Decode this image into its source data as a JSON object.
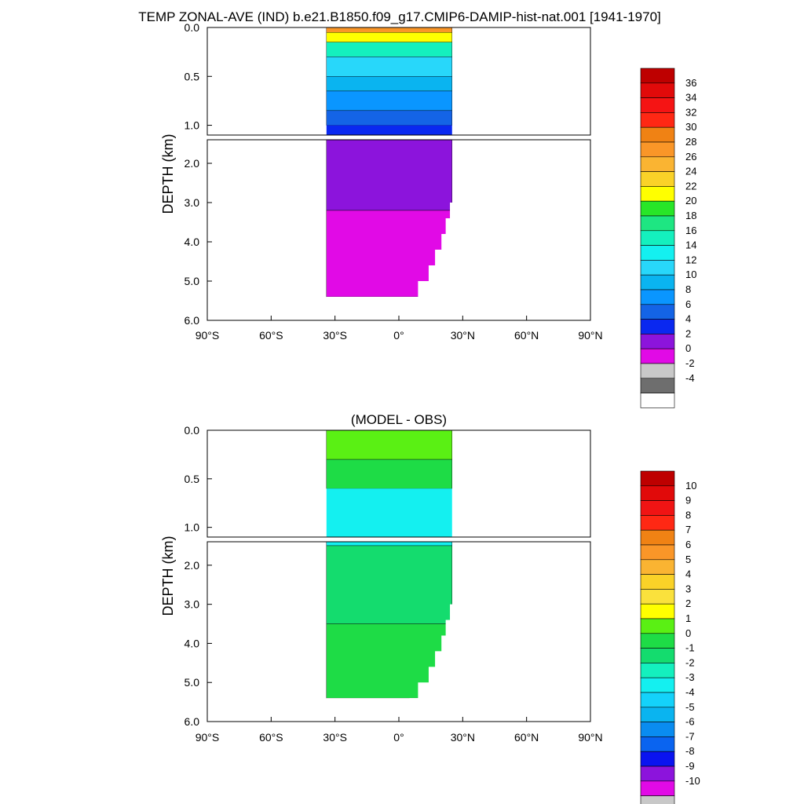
{
  "figure": {
    "title": "TEMP ZONAL-AVE (IND) b.e21.B1850.f09_g17.CMIP6-DAMIP-hist-nat.001 [1941-1970]"
  },
  "colors": {
    "temp_scale": [
      "#ffffff",
      "#6e6e6e",
      "#c8c8c8",
      "#e10ae6",
      "#8c14dc",
      "#0a28f0",
      "#1464e6",
      "#0a96ff",
      "#0ab4f0",
      "#28d7fa",
      "#14f0f0",
      "#14f0be",
      "#1ee682",
      "#28e628",
      "#ffff00",
      "#fad228",
      "#fab432",
      "#fa9628",
      "#f08214",
      "#ff2814",
      "#f51414",
      "#e10a0a",
      "#be0000"
    ],
    "diff_scale": [
      "#ffffff",
      "#6e6e6e",
      "#c8c8c8",
      "#e10ae6",
      "#8c14dc",
      "#0a14f0",
      "#0a64f0",
      "#0a8cf0",
      "#0ab4f0",
      "#14d2fa",
      "#14f0f0",
      "#14f0be",
      "#14dc6e",
      "#1edc46",
      "#5af014",
      "#ffff00",
      "#fae13c",
      "#fad228",
      "#fab432",
      "#fa9628",
      "#f08214",
      "#ff2814",
      "#f01414",
      "#e10a0a",
      "#be0000"
    ]
  },
  "chart_data": [
    {
      "type": "heatmap",
      "title": "",
      "xlabel": "",
      "ylabel": "DEPTH (km)",
      "x_tick_labels": [
        "90°S",
        "60°S",
        "30°S",
        "0°",
        "30°N",
        "60°N",
        "90°N"
      ],
      "y_tick_labels_upper": [
        "0.0",
        "0.5",
        "1.0"
      ],
      "y_tick_labels_lower": [
        "2.0",
        "3.0",
        "4.0",
        "5.0",
        "6.0"
      ],
      "xlim": [
        -90,
        90
      ],
      "ylim": [
        0,
        6
      ],
      "data_lat_range": [
        -34,
        25
      ],
      "colorbar_labels": [
        "36",
        "34",
        "32",
        "30",
        "28",
        "26",
        "24",
        "22",
        "20",
        "18",
        "16",
        "14",
        "12",
        "10",
        "8",
        "6",
        "4",
        "2",
        "0",
        "-2",
        "-4"
      ],
      "depth_bands": [
        {
          "depth_top": 0.0,
          "depth_bottom": 0.05,
          "value_range": [
            26,
            30
          ]
        },
        {
          "depth_top": 0.05,
          "depth_bottom": 0.15,
          "value_range": [
            20,
            26
          ]
        },
        {
          "depth_top": 0.15,
          "depth_bottom": 0.3,
          "value_range": [
            14,
            20
          ]
        },
        {
          "depth_top": 0.3,
          "depth_bottom": 0.5,
          "value_range": [
            12,
            14
          ]
        },
        {
          "depth_top": 0.5,
          "depth_bottom": 0.65,
          "value_range": [
            10,
            12
          ]
        },
        {
          "depth_top": 0.65,
          "depth_bottom": 0.85,
          "value_range": [
            8,
            10
          ]
        },
        {
          "depth_top": 0.85,
          "depth_bottom": 1.0,
          "value_range": [
            6,
            8
          ]
        },
        {
          "depth_top": 1.0,
          "depth_bottom": 1.35,
          "value_range": [
            4,
            6
          ]
        },
        {
          "depth_top": 1.35,
          "depth_bottom": 3.2,
          "value_range": [
            2,
            4
          ]
        },
        {
          "depth_top": 3.2,
          "depth_bottom": 5.4,
          "value_range": [
            0,
            2
          ]
        }
      ]
    },
    {
      "type": "heatmap",
      "title": "(MODEL - OBS)",
      "xlabel": "",
      "ylabel": "DEPTH (km)",
      "x_tick_labels": [
        "90°S",
        "60°S",
        "30°S",
        "0°",
        "30°N",
        "60°N",
        "90°N"
      ],
      "y_tick_labels_upper": [
        "0.0",
        "0.5",
        "1.0"
      ],
      "y_tick_labels_lower": [
        "2.0",
        "3.0",
        "4.0",
        "5.0",
        "6.0"
      ],
      "xlim": [
        -90,
        90
      ],
      "ylim": [
        0,
        6
      ],
      "data_lat_range": [
        -34,
        25
      ],
      "colorbar_labels": [
        "10",
        "9",
        "8",
        "7",
        "6",
        "5",
        "4",
        "3",
        "2",
        "1",
        "0",
        "-1",
        "-2",
        "-3",
        "-4",
        "-5",
        "-6",
        "-7",
        "-8",
        "-9",
        "-10"
      ],
      "depth_bands": [
        {
          "depth_top": 0.0,
          "depth_bottom": 0.3,
          "value_range": [
            1,
            3
          ]
        },
        {
          "depth_top": 0.3,
          "depth_bottom": 0.6,
          "value_range": [
            0,
            2
          ]
        },
        {
          "depth_top": 0.6,
          "depth_bottom": 1.5,
          "value_range": [
            -2,
            0
          ]
        },
        {
          "depth_top": 1.5,
          "depth_bottom": 3.5,
          "value_range": [
            -1,
            1
          ]
        },
        {
          "depth_top": 3.5,
          "depth_bottom": 5.4,
          "value_range": [
            0,
            2
          ]
        }
      ]
    }
  ]
}
